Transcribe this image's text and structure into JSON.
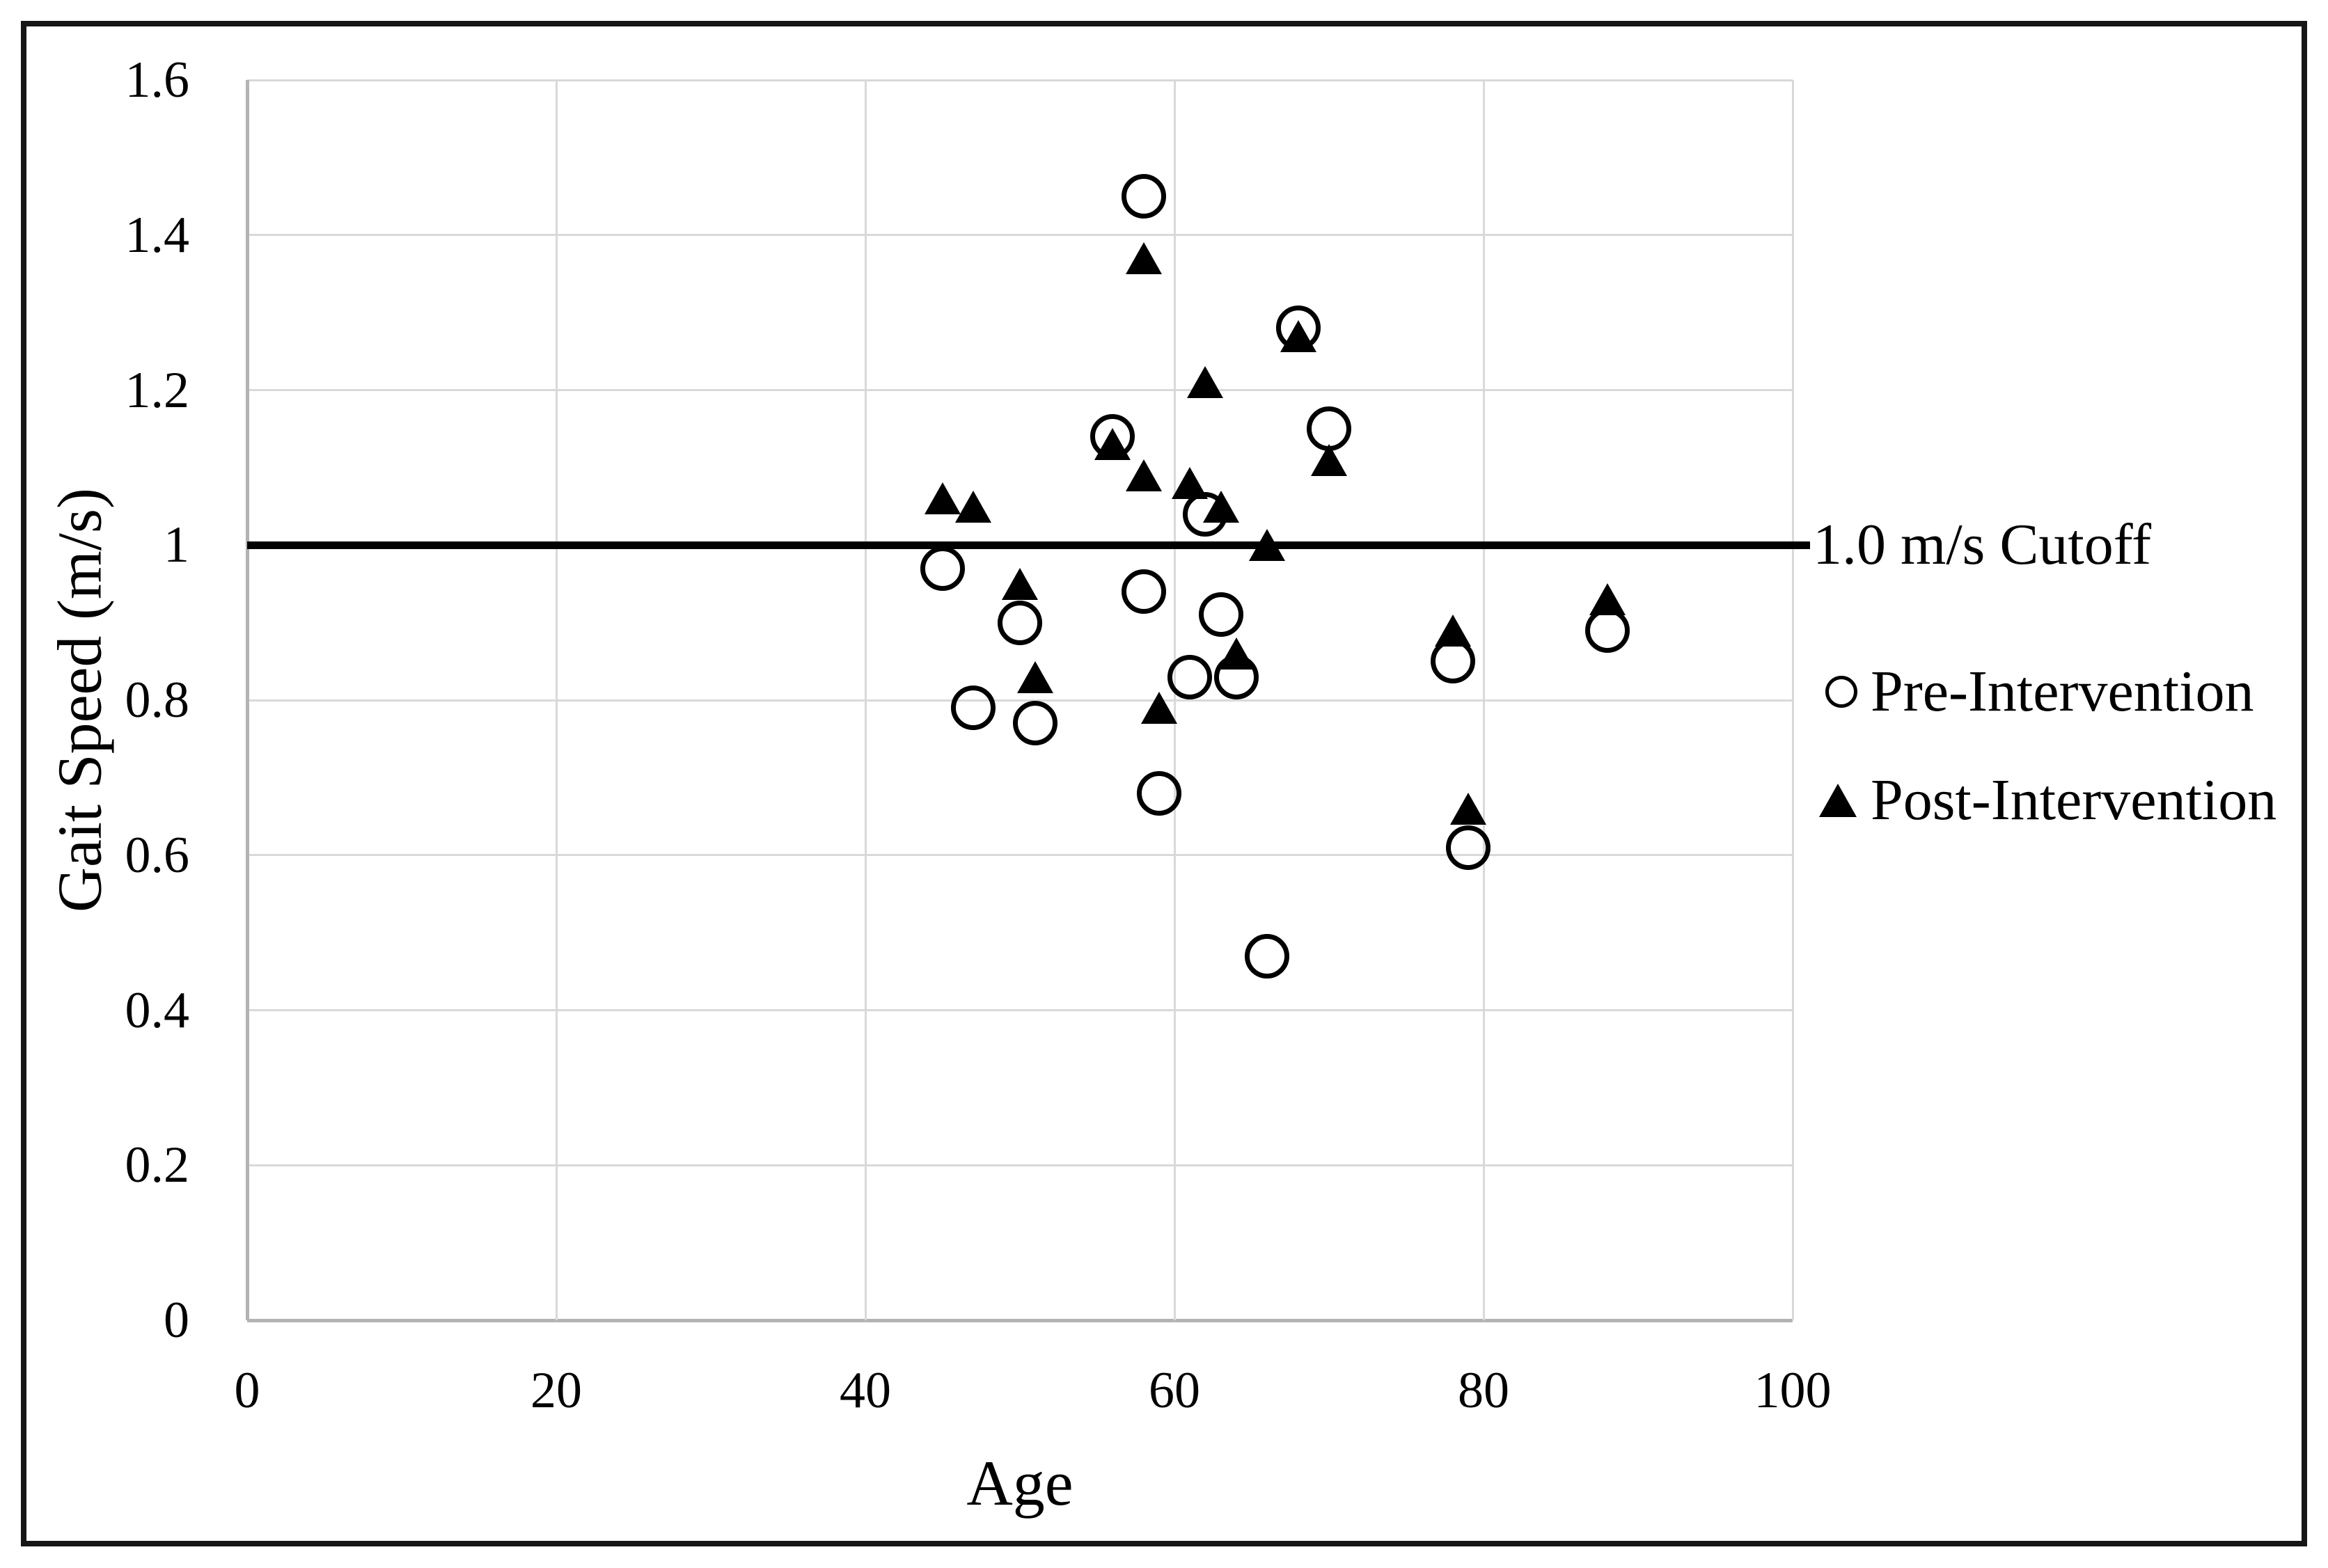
{
  "chart_data": {
    "type": "scatter",
    "title": "",
    "xlabel": "Age",
    "ylabel": "Gait Speed (m/s)",
    "xlim": [
      0,
      100
    ],
    "ylim": [
      0,
      1.6
    ],
    "x_ticks": [
      0,
      20,
      40,
      60,
      80,
      100
    ],
    "y_ticks": [
      0,
      0.2,
      0.4,
      0.6,
      0.8,
      1,
      1.2,
      1.4,
      1.6
    ],
    "grid": true,
    "legend_position": "right",
    "cutoff_line": {
      "value": 1.0,
      "label": "1.0 m/s Cutoff",
      "color": "#000000"
    },
    "series": [
      {
        "name": "Pre-Intervention",
        "marker": "circle",
        "fill": "none",
        "color": "#000000",
        "points": [
          [
            58,
            1.45
          ],
          [
            68,
            1.28
          ],
          [
            70,
            1.15
          ],
          [
            56,
            1.14
          ],
          [
            62,
            1.04
          ],
          [
            45,
            0.97
          ],
          [
            58,
            0.94
          ],
          [
            63,
            0.91
          ],
          [
            50,
            0.9
          ],
          [
            88,
            0.89
          ],
          [
            78,
            0.85
          ],
          [
            61,
            0.83
          ],
          [
            64,
            0.83
          ],
          [
            47,
            0.79
          ],
          [
            51,
            0.77
          ],
          [
            59,
            0.68
          ],
          [
            79,
            0.61
          ],
          [
            66,
            0.47
          ]
        ]
      },
      {
        "name": "Post-Intervention",
        "marker": "triangle",
        "fill": "solid",
        "color": "#000000",
        "points": [
          [
            58,
            1.37
          ],
          [
            68,
            1.27
          ],
          [
            62,
            1.21
          ],
          [
            56,
            1.13
          ],
          [
            70,
            1.11
          ],
          [
            58,
            1.09
          ],
          [
            61,
            1.08
          ],
          [
            45,
            1.06
          ],
          [
            47,
            1.05
          ],
          [
            63,
            1.05
          ],
          [
            66,
            1.0
          ],
          [
            50,
            0.95
          ],
          [
            88,
            0.93
          ],
          [
            78,
            0.89
          ],
          [
            64,
            0.86
          ],
          [
            51,
            0.83
          ],
          [
            59,
            0.79
          ],
          [
            79,
            0.66
          ]
        ]
      }
    ]
  },
  "colors": {
    "background": "#ffffff",
    "frame_border": "#161616",
    "gridline": "#d9d9d9",
    "axis_line": "#b3b3b3",
    "marker": "#000000"
  }
}
